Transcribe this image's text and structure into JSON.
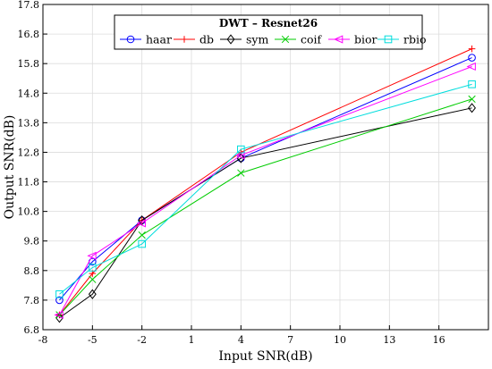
{
  "chart_data": {
    "type": "line",
    "title": "DWT – Resnet26",
    "xlabel": "Input SNR(dB)",
    "ylabel": "Output SNR(dB)",
    "xlim": [
      -8,
      19
    ],
    "ylim": [
      6.8,
      17.8
    ],
    "xticks": [
      "-8",
      "-5",
      "-2",
      "1",
      "4",
      "7",
      "10",
      "13",
      "16"
    ],
    "yticks": [
      "6.8",
      "7.8",
      "8.8",
      "9.8",
      "10.8",
      "11.8",
      "12.8",
      "13.8",
      "14.8",
      "15.8",
      "16.8",
      "17.8"
    ],
    "grid": true,
    "legend_position": "top-center",
    "x": [
      -7,
      -5,
      -2,
      4,
      18
    ],
    "series": [
      {
        "name": "haar",
        "color": "#0000ff",
        "marker": "circle",
        "values": [
          7.8,
          9.1,
          10.5,
          12.6,
          16.0
        ]
      },
      {
        "name": "db",
        "color": "#ff0000",
        "marker": "plus",
        "values": [
          7.3,
          8.7,
          10.5,
          12.8,
          16.3
        ]
      },
      {
        "name": "sym",
        "color": "#000000",
        "marker": "diamond",
        "values": [
          7.2,
          8.0,
          10.5,
          12.6,
          14.3
        ]
      },
      {
        "name": "coif",
        "color": "#00cc00",
        "marker": "x",
        "values": [
          7.3,
          8.5,
          10.0,
          12.1,
          14.6
        ]
      },
      {
        "name": "bior",
        "color": "#ff00ff",
        "marker": "triangle-left",
        "values": [
          7.3,
          9.3,
          10.4,
          12.7,
          15.7
        ]
      },
      {
        "name": "rbio",
        "color": "#00dddd",
        "marker": "square",
        "values": [
          8.0,
          8.9,
          9.7,
          12.9,
          15.1
        ]
      }
    ]
  }
}
